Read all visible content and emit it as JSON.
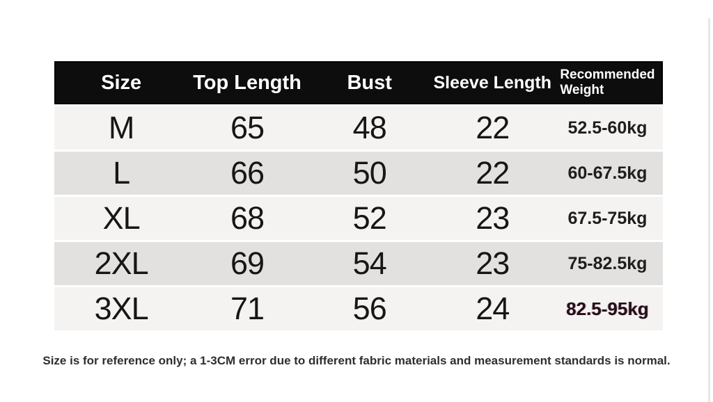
{
  "table": {
    "headers": {
      "size": "Size",
      "top_length": "Top Length",
      "bust": "Bust",
      "sleeve_length": "Sleeve Length",
      "weight_line1": "Recommended",
      "weight_line2": "Weight"
    },
    "rows": [
      {
        "size": "M",
        "top_length": "65",
        "bust": "48",
        "sleeve_length": "22",
        "weight": "52.5-60kg"
      },
      {
        "size": "L",
        "top_length": "66",
        "bust": "50",
        "sleeve_length": "22",
        "weight": "60-67.5kg"
      },
      {
        "size": "XL",
        "top_length": "68",
        "bust": "52",
        "sleeve_length": "23",
        "weight": "67.5-75kg"
      },
      {
        "size": "2XL",
        "top_length": "69",
        "bust": "54",
        "sleeve_length": "23",
        "weight": "75-82.5kg"
      },
      {
        "size": "3XL",
        "top_length": "71",
        "bust": "56",
        "sleeve_length": "24",
        "weight": "82.5-95kg"
      }
    ]
  },
  "footnote": "Size is for reference only; a 1-3CM error due to different fabric materials and measurement standards is normal.",
  "colors": {
    "header_bg": "#0d0d0d",
    "row_light": "#f4f3f1",
    "row_dark": "#e2e1df",
    "highlight_weight": "#211019",
    "edge_line": "#e7e6e6"
  }
}
